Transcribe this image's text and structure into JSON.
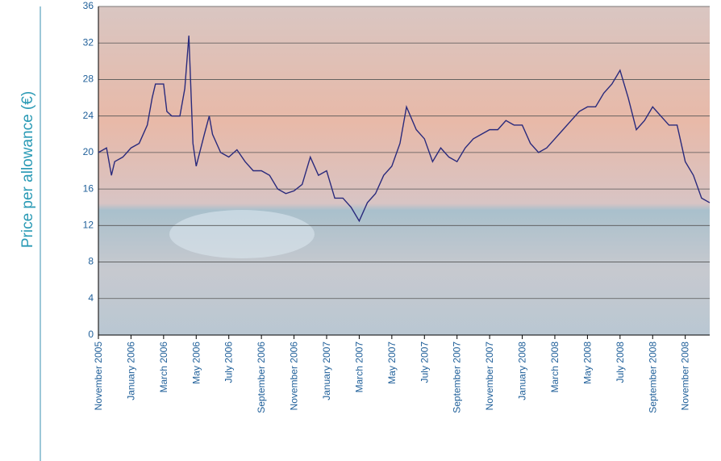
{
  "chart_data": {
    "type": "line",
    "y_label": "Price per allowance (€)",
    "xlim": [
      0,
      37.5
    ],
    "xticks": [
      {
        "value": 0,
        "label": "November 2005"
      },
      {
        "value": 2,
        "label": "January 2006"
      },
      {
        "value": 4,
        "label": "March 2006"
      },
      {
        "value": 6,
        "label": "May 2006"
      },
      {
        "value": 8,
        "label": "July 2006"
      },
      {
        "value": 10,
        "label": "September 2006"
      },
      {
        "value": 12,
        "label": "November 2006"
      },
      {
        "value": 14,
        "label": "January 2007"
      },
      {
        "value": 16,
        "label": "March 2007"
      },
      {
        "value": 18,
        "label": "May 2007"
      },
      {
        "value": 20,
        "label": "July 2007"
      },
      {
        "value": 22,
        "label": "September 2007"
      },
      {
        "value": 24,
        "label": "November 2007"
      },
      {
        "value": 26,
        "label": "January 2008"
      },
      {
        "value": 28,
        "label": "March 2008"
      },
      {
        "value": 30,
        "label": "May 2008"
      },
      {
        "value": 32,
        "label": "July 2008"
      },
      {
        "value": 34,
        "label": "September 2008"
      },
      {
        "value": 36,
        "label": "November 2008"
      }
    ],
    "ylim": [
      0,
      36
    ],
    "yticks": [
      0,
      4,
      8,
      12,
      16,
      20,
      24,
      28,
      32,
      36
    ],
    "grid": true,
    "series": [
      {
        "color": "#2a2a7c",
        "x": [
          0,
          0.5,
          0.8,
          1,
          1.5,
          2,
          2.5,
          3,
          3.3,
          3.5,
          4,
          4.2,
          4.5,
          5,
          5.3,
          5.55,
          5.8,
          6,
          6.5,
          6.8,
          7,
          7.5,
          8,
          8.5,
          9,
          9.5,
          10,
          10.5,
          11,
          11.5,
          12,
          12.5,
          13,
          13.5,
          14,
          14.5,
          15,
          15.5,
          16,
          16.5,
          17,
          17.5,
          18,
          18.5,
          18.9,
          19.5,
          20,
          20.5,
          21,
          21.5,
          22,
          22.5,
          23,
          23.5,
          24,
          24.5,
          25,
          25.5,
          26,
          26.5,
          27,
          27.5,
          28,
          28.5,
          29,
          29.5,
          30,
          30.5,
          31,
          31.5,
          32,
          32.5,
          33,
          33.5,
          34,
          34.5,
          35,
          35.5,
          36,
          36.5,
          37,
          37.5
        ],
        "values": [
          20,
          20.5,
          17.5,
          19,
          19.5,
          20.5,
          21,
          23,
          26,
          27.5,
          27.5,
          24.5,
          24,
          24,
          27,
          32.8,
          21,
          18.5,
          22,
          24,
          22,
          20,
          19.5,
          20.3,
          19,
          18,
          18,
          17.5,
          16,
          15.5,
          15.8,
          16.5,
          19.5,
          17.5,
          18,
          15,
          15,
          14,
          12.5,
          14.5,
          15.5,
          17.5,
          18.5,
          21,
          25,
          22.5,
          21.5,
          19,
          20.5,
          19.5,
          19,
          20.5,
          21.5,
          22,
          22.5,
          22.5,
          23.5,
          23,
          23,
          21,
          20,
          20.5,
          21.5,
          22.5,
          23.5,
          24.5,
          25,
          25,
          26.5,
          27.5,
          29,
          26,
          22.5,
          23.5,
          25,
          24,
          23,
          23,
          19,
          17.5,
          15,
          14.5
        ]
      }
    ]
  }
}
